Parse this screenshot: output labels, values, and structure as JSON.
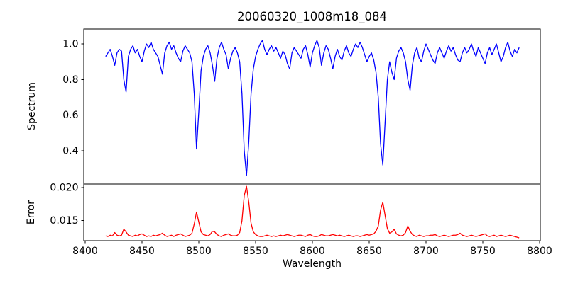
{
  "chart_data": {
    "type": "line",
    "title": "20060320_1008m18_084",
    "xlabel": "Wavelength",
    "grid": false,
    "legend": null,
    "x_start": 8418,
    "x_step": 2,
    "xlim": [
      8398.75,
      8800.63
    ],
    "xticks": [
      8400,
      8450,
      8500,
      8550,
      8600,
      8650,
      8700,
      8750,
      8800
    ],
    "line_colors": {
      "spectrum": "#0000ff",
      "error": "#ff0000"
    },
    "frame_color": "#000000",
    "subplots": [
      {
        "name": "spectrum",
        "ylabel": "Spectrum",
        "ylim": [
          0.213,
          1.084
        ],
        "yticks": [
          0.4,
          0.6,
          0.8,
          1.0
        ],
        "ytick_labels": [
          "0.4",
          "0.6",
          "0.8",
          "1.0"
        ],
        "color": "#0000ff",
        "values": [
          0.93,
          0.95,
          0.97,
          0.93,
          0.88,
          0.95,
          0.97,
          0.96,
          0.8,
          0.73,
          0.93,
          0.97,
          0.99,
          0.95,
          0.97,
          0.93,
          0.9,
          0.96,
          1.0,
          0.98,
          1.01,
          0.97,
          0.95,
          0.93,
          0.88,
          0.83,
          0.95,
          0.99,
          1.01,
          0.97,
          0.99,
          0.95,
          0.92,
          0.9,
          0.96,
          0.99,
          0.97,
          0.95,
          0.9,
          0.72,
          0.41,
          0.62,
          0.85,
          0.93,
          0.97,
          0.99,
          0.95,
          0.88,
          0.79,
          0.92,
          0.98,
          1.01,
          0.97,
          0.94,
          0.86,
          0.92,
          0.96,
          0.98,
          0.95,
          0.9,
          0.72,
          0.4,
          0.26,
          0.45,
          0.72,
          0.86,
          0.93,
          0.97,
          1.0,
          1.02,
          0.97,
          0.94,
          0.97,
          0.99,
          0.96,
          0.98,
          0.95,
          0.92,
          0.96,
          0.94,
          0.89,
          0.86,
          0.95,
          0.98,
          0.96,
          0.94,
          0.92,
          0.97,
          0.99,
          0.94,
          0.87,
          0.95,
          0.99,
          1.02,
          0.98,
          0.88,
          0.95,
          0.99,
          0.97,
          0.92,
          0.86,
          0.93,
          0.97,
          0.93,
          0.91,
          0.96,
          0.99,
          0.95,
          0.93,
          0.97,
          1.0,
          0.98,
          1.01,
          0.98,
          0.94,
          0.9,
          0.93,
          0.95,
          0.91,
          0.84,
          0.7,
          0.44,
          0.32,
          0.56,
          0.8,
          0.9,
          0.84,
          0.8,
          0.92,
          0.96,
          0.98,
          0.95,
          0.9,
          0.8,
          0.74,
          0.88,
          0.95,
          0.98,
          0.92,
          0.9,
          0.96,
          1.0,
          0.97,
          0.94,
          0.91,
          0.89,
          0.95,
          0.98,
          0.95,
          0.92,
          0.96,
          0.99,
          0.96,
          0.98,
          0.94,
          0.91,
          0.9,
          0.95,
          0.98,
          0.95,
          0.97,
          1.0,
          0.96,
          0.93,
          0.98,
          0.95,
          0.92,
          0.89,
          0.95,
          0.98,
          0.94,
          0.97,
          1.0,
          0.95,
          0.9,
          0.93,
          0.98,
          1.01,
          0.96,
          0.93,
          0.97,
          0.95,
          0.98
        ]
      },
      {
        "name": "error",
        "ylabel": "Error",
        "ylim": [
          0.01197,
          0.02054
        ],
        "yticks": [
          0.015,
          0.02
        ],
        "ytick_labels": [
          "0.015",
          "0.020"
        ],
        "color": "#ff0000",
        "values": [
          0.0127,
          0.0126,
          0.0128,
          0.0127,
          0.0132,
          0.0128,
          0.0127,
          0.0128,
          0.0137,
          0.0133,
          0.0128,
          0.0127,
          0.0126,
          0.0128,
          0.0127,
          0.0129,
          0.013,
          0.0128,
          0.0126,
          0.0127,
          0.0126,
          0.0128,
          0.0127,
          0.0128,
          0.0129,
          0.0131,
          0.0128,
          0.0126,
          0.0127,
          0.0128,
          0.0126,
          0.0128,
          0.0129,
          0.013,
          0.0128,
          0.0126,
          0.0127,
          0.0128,
          0.0131,
          0.0145,
          0.0163,
          0.0148,
          0.0133,
          0.0129,
          0.0128,
          0.0127,
          0.0129,
          0.0134,
          0.0133,
          0.0129,
          0.0127,
          0.0126,
          0.0128,
          0.0129,
          0.013,
          0.0128,
          0.0127,
          0.0127,
          0.0128,
          0.0132,
          0.015,
          0.0188,
          0.0202,
          0.0178,
          0.0146,
          0.0133,
          0.0129,
          0.0127,
          0.0126,
          0.0126,
          0.0127,
          0.0128,
          0.0127,
          0.0126,
          0.0127,
          0.0126,
          0.0127,
          0.0128,
          0.0127,
          0.0128,
          0.0129,
          0.0128,
          0.0127,
          0.0126,
          0.0127,
          0.0128,
          0.0128,
          0.0127,
          0.0126,
          0.0128,
          0.0129,
          0.0127,
          0.0126,
          0.0126,
          0.0127,
          0.0129,
          0.0128,
          0.0127,
          0.0127,
          0.0128,
          0.0129,
          0.0128,
          0.0127,
          0.0128,
          0.0127,
          0.0126,
          0.0127,
          0.0128,
          0.0127,
          0.0126,
          0.0127,
          0.0127,
          0.0126,
          0.0127,
          0.0128,
          0.0129,
          0.0128,
          0.0129,
          0.013,
          0.0134,
          0.0142,
          0.0166,
          0.0178,
          0.0158,
          0.0138,
          0.0131,
          0.0133,
          0.0137,
          0.013,
          0.0128,
          0.0127,
          0.0128,
          0.0132,
          0.0142,
          0.0134,
          0.0129,
          0.0127,
          0.0126,
          0.0128,
          0.0127,
          0.0126,
          0.0127,
          0.0127,
          0.0128,
          0.0128,
          0.0129,
          0.0127,
          0.0126,
          0.0127,
          0.0128,
          0.0127,
          0.0126,
          0.0127,
          0.0128,
          0.0128,
          0.0129,
          0.0131,
          0.0128,
          0.0127,
          0.0126,
          0.0127,
          0.0128,
          0.0127,
          0.0126,
          0.0127,
          0.0128,
          0.0129,
          0.013,
          0.0127,
          0.0126,
          0.0127,
          0.0128,
          0.0126,
          0.0127,
          0.0128,
          0.0127,
          0.0126,
          0.0127,
          0.0128,
          0.0127,
          0.0126,
          0.0125,
          0.0124
        ]
      }
    ]
  }
}
